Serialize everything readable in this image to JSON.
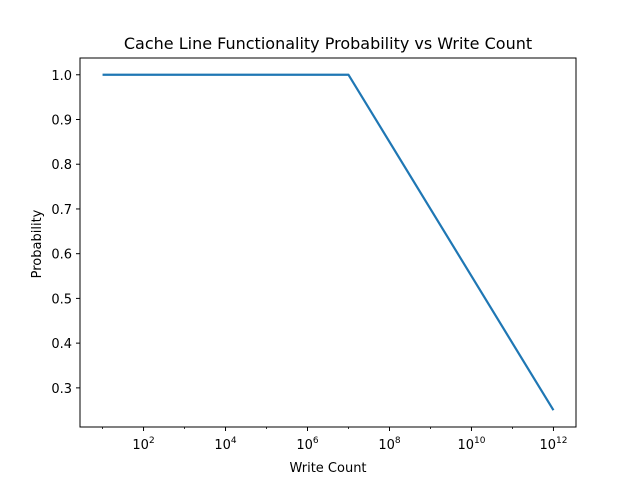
{
  "chart_data": {
    "type": "line",
    "title": "Cache Line Functionality Probability vs Write Count",
    "xlabel": "Write Count",
    "ylabel": "Probability",
    "xscale": "log",
    "xlim": [
      10,
      1000000000000
    ],
    "ylim": [
      0.2125,
      1.0375
    ],
    "x_ticks": [
      {
        "value": 100,
        "base": "10",
        "exp": "2"
      },
      {
        "value": 10000,
        "base": "10",
        "exp": "4"
      },
      {
        "value": 1000000,
        "base": "10",
        "exp": "6"
      },
      {
        "value": 100000000,
        "base": "10",
        "exp": "8"
      },
      {
        "value": 10000000000,
        "base": "10",
        "exp": "10"
      },
      {
        "value": 1000000000000,
        "base": "10",
        "exp": "12"
      }
    ],
    "y_ticks": [
      {
        "value": 0.3,
        "label": "0.3"
      },
      {
        "value": 0.4,
        "label": "0.4"
      },
      {
        "value": 0.5,
        "label": "0.5"
      },
      {
        "value": 0.6,
        "label": "0.6"
      },
      {
        "value": 0.7,
        "label": "0.7"
      },
      {
        "value": 0.8,
        "label": "0.8"
      },
      {
        "value": 0.9,
        "label": "0.9"
      },
      {
        "value": 1.0,
        "label": "1.0"
      }
    ],
    "grid": false,
    "legend": "none",
    "series": [
      {
        "color": "#1f77b4",
        "x": [
          10,
          10000000,
          1000000000000
        ],
        "y": [
          1.0,
          1.0,
          0.25
        ]
      }
    ]
  }
}
